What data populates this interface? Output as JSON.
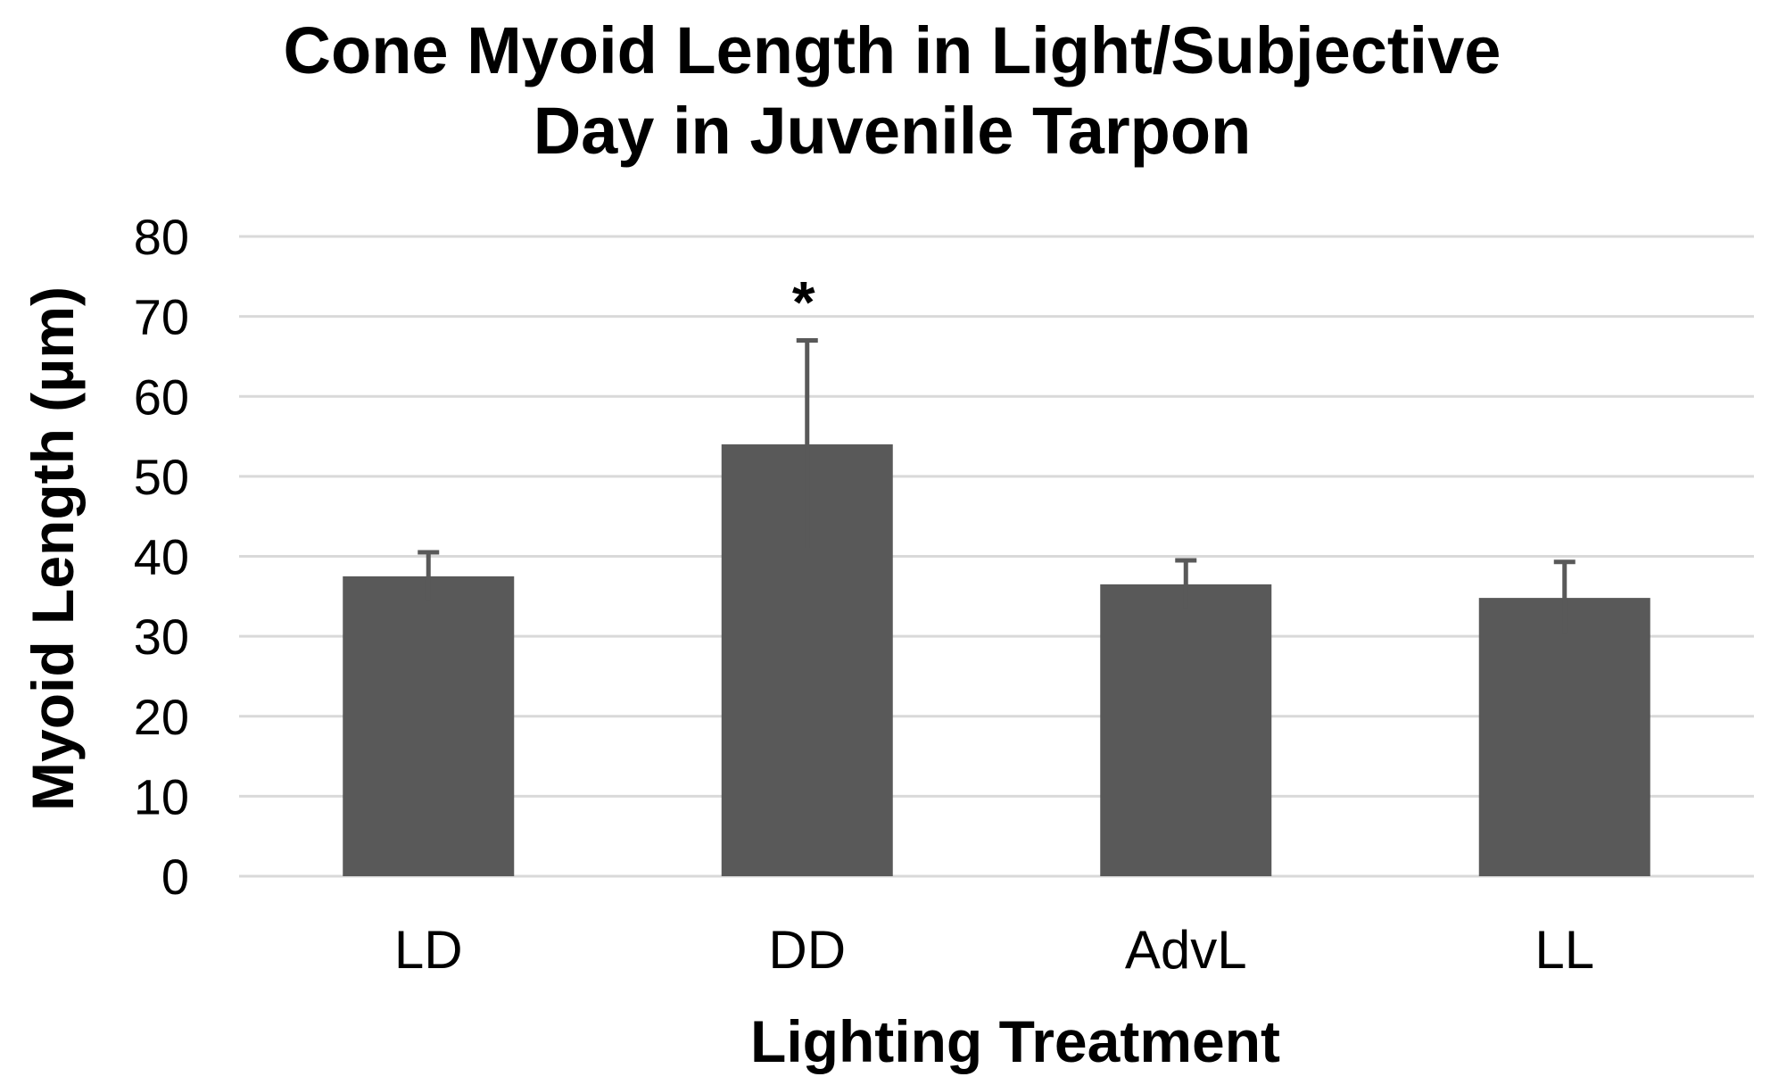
{
  "chart_data": {
    "type": "bar",
    "title_lines": [
      "Cone Myoid Length in Light/Subjective",
      "Day in Juvenile Tarpon"
    ],
    "xlabel": "Lighting Treatment",
    "ylabel": "Myoid Length (µm)",
    "categories": [
      "LD",
      "DD",
      "AdvL",
      "LL"
    ],
    "values": [
      37.5,
      54,
      36.5,
      34.8
    ],
    "error": [
      3,
      13,
      3,
      4.5
    ],
    "annotations": [
      {
        "category": "DD",
        "text": "*"
      }
    ],
    "ylim": [
      0,
      80
    ],
    "yticks": [
      0,
      10,
      20,
      30,
      40,
      50,
      60,
      70,
      80
    ],
    "grid": true,
    "legend": "none",
    "colors": {
      "bar": "#595959",
      "grid": "#d9d9d9"
    }
  }
}
